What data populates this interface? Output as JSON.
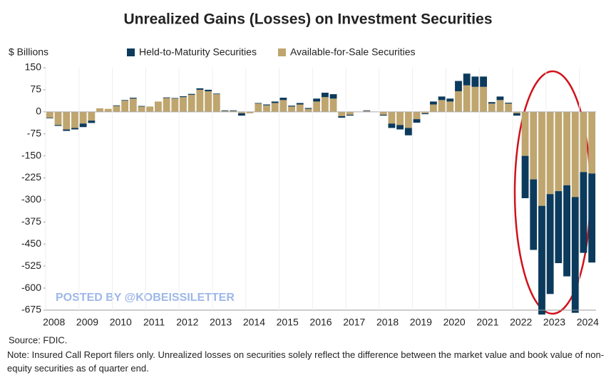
{
  "chart_data": {
    "type": "stacked_bar",
    "title": "Unrealized Gains (Losses) on Investment Securities",
    "y_axis_label": "$ Billions",
    "watermark": "POSTED BY @KOBEISSILETTER",
    "source": "Source: FDIC.",
    "note": "Note: Insured Call Report filers only. Unrealized losses on securities solely reflect the difference between the market value and book value of non-equity securities as of quarter end.",
    "categories": [
      "2008",
      null,
      null,
      null,
      "2009",
      null,
      null,
      null,
      "2010",
      null,
      null,
      null,
      "2011",
      null,
      null,
      null,
      "2012",
      null,
      null,
      null,
      "2013",
      null,
      null,
      null,
      "2014",
      null,
      null,
      null,
      "2015",
      null,
      null,
      null,
      "2016",
      null,
      null,
      null,
      "2017",
      null,
      null,
      null,
      "2018",
      null,
      null,
      null,
      "2019",
      null,
      null,
      null,
      "2020",
      null,
      null,
      null,
      "2021",
      null,
      null,
      null,
      "2022",
      null,
      null,
      null,
      "2023",
      null,
      null,
      null,
      "2024",
      null
    ],
    "series": [
      {
        "name": "Held-to-Maturity Securities",
        "color": "#0b3a5c",
        "values": [
          -2,
          -3,
          -5,
          -5,
          -12,
          -8,
          0,
          0,
          2,
          2,
          3,
          2,
          0,
          0,
          2,
          2,
          3,
          3,
          5,
          5,
          2,
          2,
          2,
          -8,
          0,
          2,
          3,
          5,
          8,
          3,
          5,
          3,
          10,
          15,
          15,
          -5,
          -3,
          0,
          2,
          0,
          -3,
          -15,
          -15,
          -25,
          -12,
          -3,
          10,
          12,
          10,
          35,
          40,
          35,
          35,
          5,
          12,
          3,
          -8,
          -144,
          -240,
          -370,
          -340,
          -245,
          -310,
          -394,
          -275,
          -303
        ]
      },
      {
        "name": "Available-for-Sale Securities",
        "color": "#bfa56e",
        "values": [
          -20,
          -45,
          -60,
          -55,
          -40,
          -30,
          12,
          10,
          20,
          38,
          45,
          18,
          18,
          35,
          47,
          45,
          50,
          58,
          75,
          70,
          60,
          3,
          3,
          -5,
          -5,
          28,
          22,
          30,
          40,
          18,
          25,
          10,
          35,
          50,
          45,
          -15,
          -10,
          0,
          3,
          0,
          -10,
          -40,
          -45,
          -55,
          -25,
          -5,
          25,
          40,
          35,
          70,
          90,
          85,
          85,
          28,
          40,
          28,
          -5,
          -150,
          -230,
          -320,
          -280,
          -270,
          -250,
          -290,
          -205,
          -210
        ]
      }
    ],
    "ylim": [
      -675,
      150
    ],
    "yticks": [
      150,
      75,
      0,
      -75,
      -150,
      -225,
      -300,
      -375,
      -450,
      -525,
      -600,
      -675
    ],
    "legend": "top",
    "grid": false
  }
}
